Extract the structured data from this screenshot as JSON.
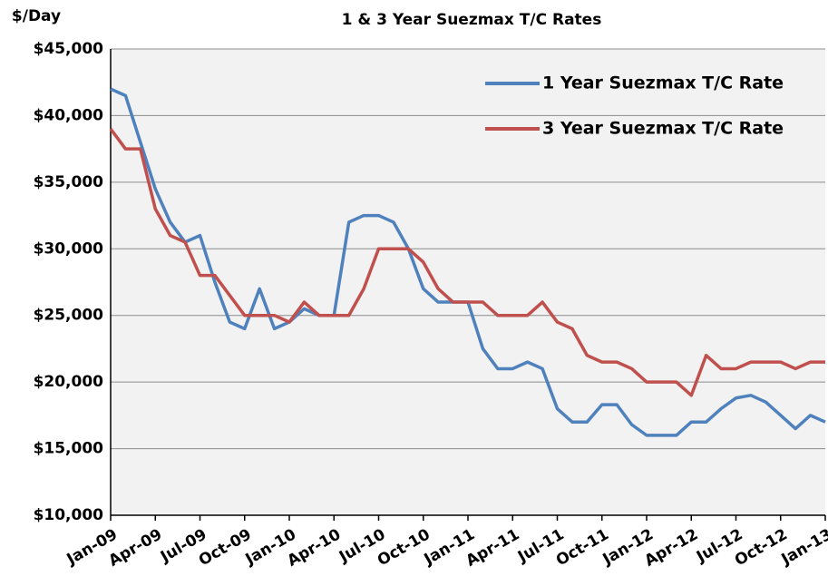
{
  "chart_data": {
    "type": "line",
    "title": "1 & 3 Year Suezmax T/C Rates",
    "y_label": "$/Day",
    "categories": [
      "Jan-09",
      null,
      null,
      "Apr-09",
      null,
      null,
      "Jul-09",
      null,
      null,
      "Oct-09",
      null,
      null,
      "Jan-10",
      null,
      null,
      "Apr-10",
      null,
      null,
      "Jul-10",
      null,
      null,
      "Oct-10",
      null,
      null,
      "Jan-11",
      null,
      null,
      "Apr-11",
      null,
      null,
      "Jul-11",
      null,
      null,
      "Oct-11",
      null,
      null,
      "Jan-12",
      null,
      null,
      "Apr-12",
      null,
      null,
      "Jul-12",
      null,
      null,
      "Oct-12",
      null,
      null,
      "Jan-13"
    ],
    "series": [
      {
        "name": "1 Year Suezmax T/C Rate",
        "color": "#4f81bd",
        "values": [
          42000,
          41500,
          38000,
          34500,
          32000,
          30500,
          31000,
          27500,
          24500,
          24000,
          27000,
          24000,
          24500,
          25500,
          25000,
          25000,
          32000,
          32500,
          32500,
          32000,
          30000,
          27000,
          26000,
          26000,
          26000,
          22500,
          21000,
          21000,
          21500,
          21000,
          18000,
          17000,
          17000,
          18300,
          18300,
          16800,
          16000,
          16000,
          16000,
          17000,
          17000,
          18000,
          18800,
          19000,
          18500,
          17500,
          16500,
          17500,
          17000
        ]
      },
      {
        "name": "3 Year Suezmax T/C Rate",
        "color": "#c0504d",
        "values": [
          39000,
          37500,
          37500,
          33000,
          31000,
          30500,
          28000,
          28000,
          26500,
          25000,
          25000,
          25000,
          24500,
          26000,
          25000,
          25000,
          25000,
          27000,
          30000,
          30000,
          30000,
          29000,
          27000,
          26000,
          26000,
          26000,
          25000,
          25000,
          25000,
          26000,
          24500,
          24000,
          22000,
          21500,
          21500,
          21000,
          20000,
          20000,
          20000,
          19000,
          22000,
          21000,
          21000,
          21500,
          21500,
          21500,
          21000,
          21500,
          21500
        ]
      }
    ],
    "ylim": [
      10000,
      45000
    ],
    "yticks": [
      {
        "value": 10000,
        "label": "$10,000"
      },
      {
        "value": 15000,
        "label": "$15,000"
      },
      {
        "value": 20000,
        "label": "$20,000"
      },
      {
        "value": 25000,
        "label": "$25,000"
      },
      {
        "value": 30000,
        "label": "$30,000"
      },
      {
        "value": 35000,
        "label": "$35,000"
      },
      {
        "value": 40000,
        "label": "$40,000"
      },
      {
        "value": 45000,
        "label": "$45,000"
      }
    ],
    "grid": true,
    "legend": "upper right"
  }
}
